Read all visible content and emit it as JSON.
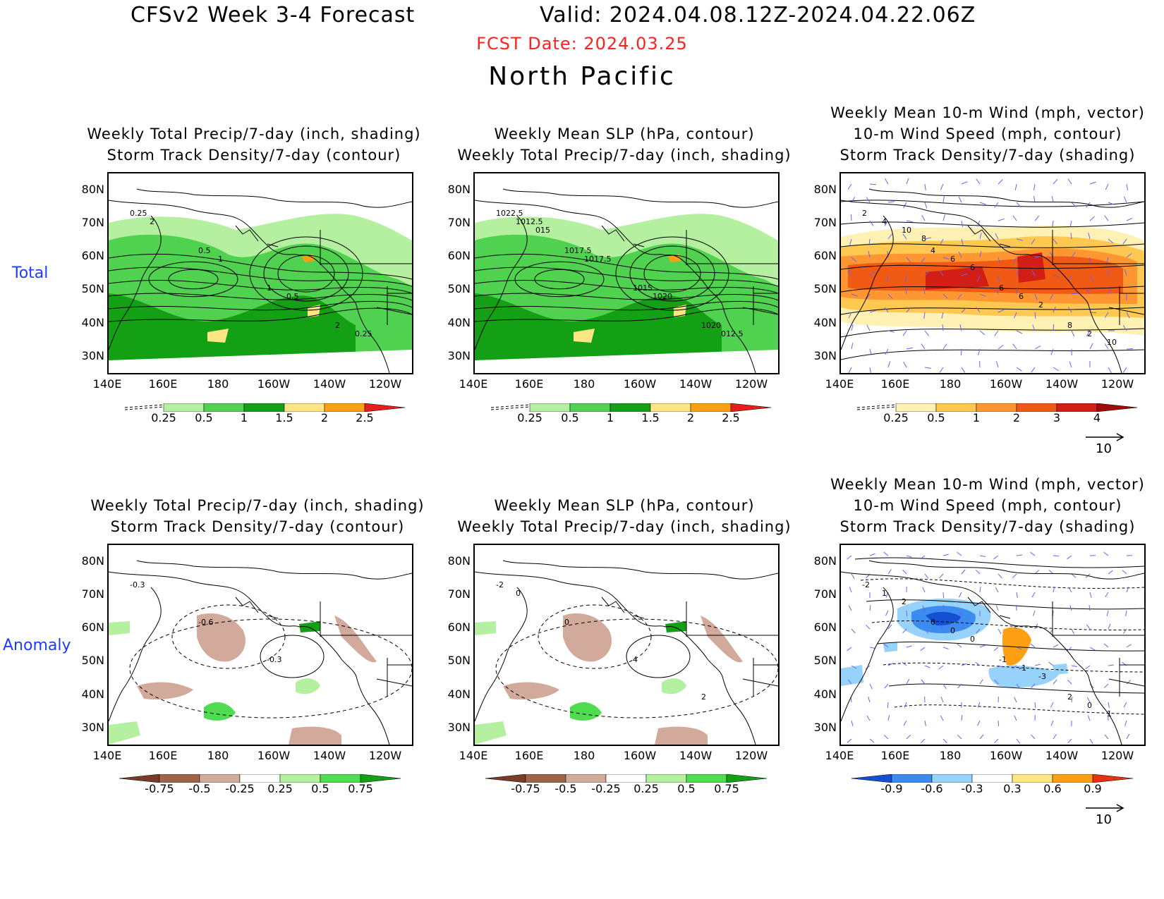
{
  "header": {
    "title_left": "CFSv2 Week 3-4 Forecast",
    "title_right": "Valid: 2024.04.08.12Z-2024.04.22.06Z",
    "fcst_date": "FCST Date: 2024.03.25",
    "region": "North Pacific"
  },
  "rows": {
    "total_label": "Total",
    "anomaly_label": "Anomaly"
  },
  "panels": {
    "top_left": {
      "line1": "Weekly Total Precip/7-day (inch, shading)",
      "line2": "Storm Track Density/7-day (contour)"
    },
    "top_mid": {
      "line1": "Weekly Mean SLP (hPa, contour)",
      "line2": "Weekly Total Precip/7-day (inch, shading)"
    },
    "top_right": {
      "line1": "Weekly Mean 10-m Wind (mph, vector)",
      "line2": "10-m Wind Speed (mph, contour)",
      "line3": "Storm Track Density/7-day (shading)"
    },
    "bot_left": {
      "line1": "Weekly Total Precip/7-day (inch, shading)",
      "line2": "Storm Track Density/7-day (contour)"
    },
    "bot_mid": {
      "line1": "Weekly Mean SLP (hPa, contour)",
      "line2": "Weekly Total Precip/7-day (inch, shading)"
    },
    "bot_right": {
      "line1": "Weekly Mean 10-m Wind (mph, vector)",
      "line2": "10-m Wind Speed (mph, contour)",
      "line3": "Storm Track Density/7-day (shading)"
    }
  },
  "axes": {
    "lat_labels": [
      "80N",
      "70N",
      "60N",
      "50N",
      "40N",
      "30N"
    ],
    "lon_labels": [
      "140E",
      "160E",
      "180",
      "160W",
      "140W",
      "120W"
    ]
  },
  "contour_labels": {
    "top_left": [
      "0.25",
      "0.5",
      "1",
      "2",
      "2",
      "1",
      "0.5",
      "0.25"
    ],
    "top_mid": [
      "1022.5",
      "1017.5",
      "1015",
      "1020",
      "1012.5",
      "1017.5",
      "1020",
      "012.5",
      "015"
    ],
    "top_right": [
      "2",
      "4",
      "6",
      "8",
      "4",
      "6",
      "6",
      "2",
      "10",
      "6",
      "2",
      "10",
      "8"
    ],
    "bot_left": [
      "-0.3",
      "-0.6",
      "-0.3"
    ],
    "bot_mid": [
      "-2",
      "0",
      "4",
      "2",
      "0"
    ],
    "bot_right": [
      "-2",
      "0",
      "-1",
      "2",
      "1",
      "0",
      "-1",
      "0",
      "2",
      "0",
      "-3",
      "1"
    ]
  },
  "colorbars": {
    "precip_total": {
      "labels": [
        "0.25",
        "0.5",
        "1",
        "1.5",
        "2",
        "2.5"
      ],
      "colors": [
        "#ffffff",
        "#b4f0a0",
        "#50d250",
        "#14a014",
        "#ffe682",
        "#ffa014",
        "#e61e1e"
      ]
    },
    "storm_total": {
      "labels": [
        "0.25",
        "0.5",
        "1",
        "2",
        "3",
        "4"
      ],
      "colors": [
        "#ffffff",
        "#fff0b4",
        "#ffc850",
        "#ff9632",
        "#f05a14",
        "#d21e14",
        "#a00a0a"
      ]
    },
    "precip_anom": {
      "labels": [
        "-0.75",
        "-0.5",
        "-0.25",
        "0.25",
        "0.5",
        "0.75"
      ],
      "colors": [
        "#783c28",
        "#a0644b",
        "#d2aa9b",
        "#ffffff",
        "#b4f0a0",
        "#50dc50",
        "#14a014"
      ]
    },
    "storm_anom": {
      "labels": [
        "-0.9",
        "-0.6",
        "-0.3",
        "0.3",
        "0.6",
        "0.9"
      ],
      "colors": [
        "#1450d2",
        "#3c8cf0",
        "#96d2fa",
        "#ffffff",
        "#ffe682",
        "#ffa014",
        "#e63214"
      ]
    }
  },
  "vector_reference": {
    "top": "10",
    "bottom": "10"
  },
  "colors": {
    "fcst_red": "#ff2020",
    "row_label_blue": "#1e3cff",
    "vector_blue": "#6464ff"
  }
}
